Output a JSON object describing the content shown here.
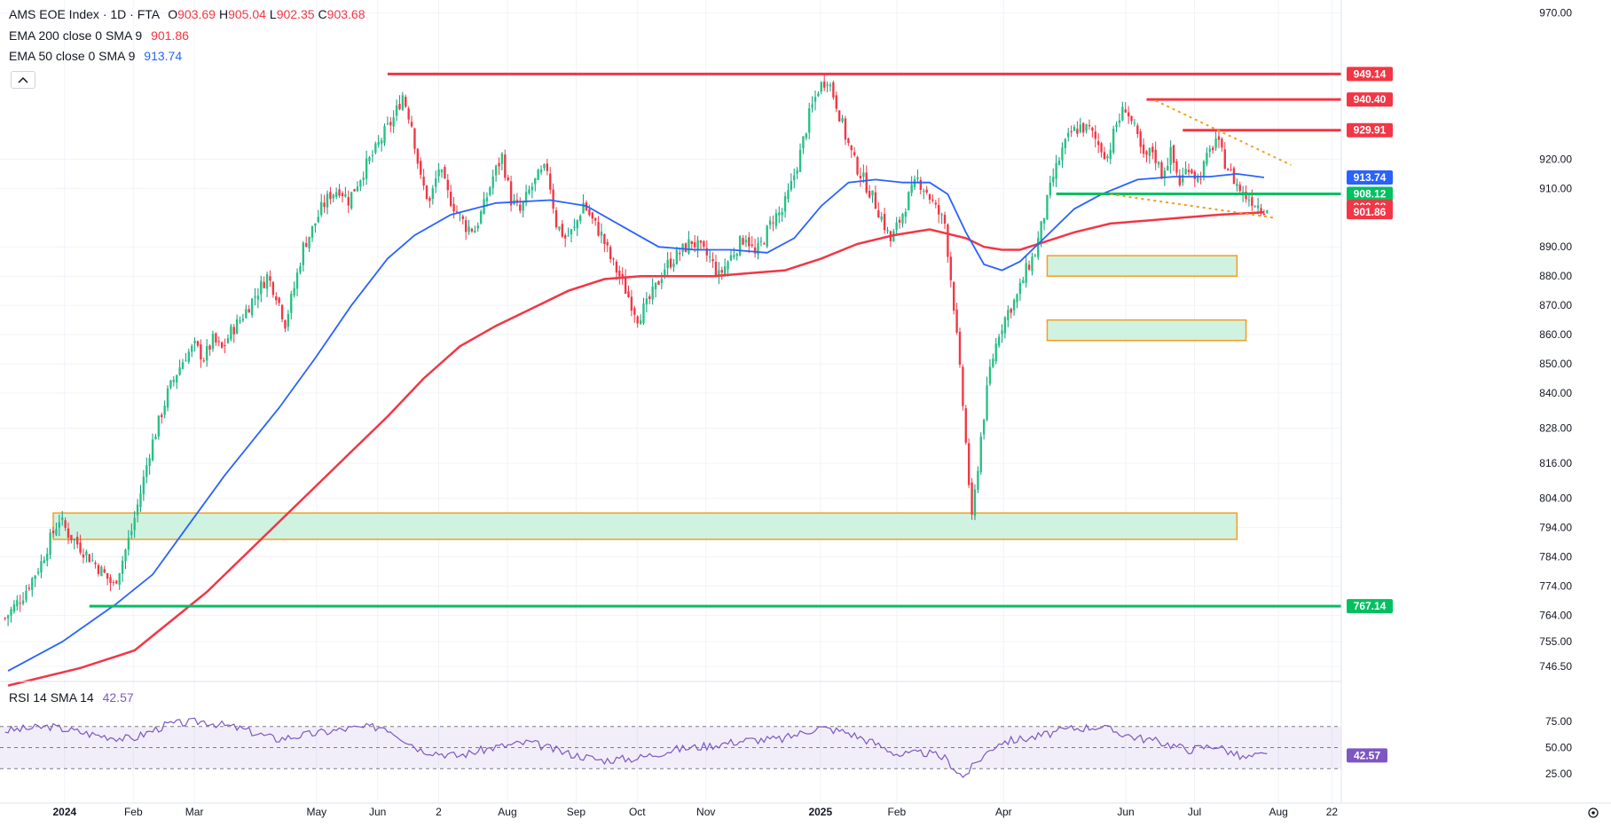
{
  "header": {
    "symbol_title": "AMS EOE Index · 1D · FTA",
    "ohlc": [
      {
        "key": "O",
        "value": "903.69"
      },
      {
        "key": "H",
        "value": "905.04"
      },
      {
        "key": "L",
        "value": "902.35"
      },
      {
        "key": "C",
        "value": "903.68"
      }
    ],
    "ema200_label": "EMA 200 close 0 SMA 9",
    "ema200_value": "901.86",
    "ema50_label": "EMA 50 close 0 SMA 9",
    "ema50_value": "913.74",
    "rsi_label": "RSI 14 SMA 14",
    "rsi_value": "42.57"
  },
  "colors": {
    "up": "#22ab94",
    "down": "#f23645",
    "ema200": "#f23645",
    "ema50": "#2962ff",
    "rsi": "#7e57c2",
    "resistance": "#f23645",
    "support": "#00c060",
    "zone_fill": "#c8f0dc",
    "zone_border": "#f59d1e",
    "trend": "#f59d1e"
  },
  "chart_data": {
    "type": "candlestick",
    "price_axis": {
      "ticks": [
        "970.00",
        "920.00",
        "910.00",
        "890.00",
        "880.00",
        "870.00",
        "860.00",
        "850.00",
        "840.00",
        "828.00",
        "816.00",
        "804.00",
        "794.00",
        "784.00",
        "774.00",
        "764.00",
        "755.00",
        "746.50"
      ],
      "range": [
        742,
        972
      ]
    },
    "time_axis": {
      "labels": [
        "2024",
        "Feb",
        "Mar",
        "May",
        "Jun",
        "2",
        "Aug",
        "Sep",
        "Oct",
        "Nov",
        "2025",
        "Feb",
        "Apr",
        "Jun",
        "Jul",
        "Aug",
        "22"
      ]
    },
    "price_path": [
      [
        0,
        763
      ],
      [
        2,
        771
      ],
      [
        4,
        782
      ],
      [
        5,
        790
      ],
      [
        6,
        797
      ],
      [
        7,
        792
      ],
      [
        9,
        785
      ],
      [
        11,
        778
      ],
      [
        12,
        774
      ],
      [
        13,
        783
      ],
      [
        14,
        793
      ],
      [
        15,
        806
      ],
      [
        16,
        820
      ],
      [
        17,
        830
      ],
      [
        18,
        840
      ],
      [
        19,
        847
      ],
      [
        20,
        853
      ],
      [
        21,
        856
      ],
      [
        22,
        852
      ],
      [
        23,
        858
      ],
      [
        24,
        855
      ],
      [
        25,
        861
      ],
      [
        26,
        865
      ],
      [
        27,
        870
      ],
      [
        29,
        880
      ],
      [
        30,
        874
      ],
      [
        31,
        864
      ],
      [
        32,
        876
      ],
      [
        33,
        890
      ],
      [
        34,
        896
      ],
      [
        35,
        903
      ],
      [
        36,
        908
      ],
      [
        37,
        910
      ],
      [
        38,
        906
      ],
      [
        39,
        912
      ],
      [
        40,
        918
      ],
      [
        41,
        923
      ],
      [
        42,
        929
      ],
      [
        43,
        934
      ],
      [
        44,
        942
      ],
      [
        45,
        932
      ],
      [
        46,
        913
      ],
      [
        47,
        905
      ],
      [
        48,
        917
      ],
      [
        49,
        908
      ],
      [
        50,
        902
      ],
      [
        51,
        897
      ],
      [
        52,
        896
      ],
      [
        53,
        904
      ],
      [
        54,
        914
      ],
      [
        55,
        921
      ],
      [
        56,
        906
      ],
      [
        57,
        902
      ],
      [
        58,
        909
      ],
      [
        59,
        914
      ],
      [
        60,
        917
      ],
      [
        61,
        898
      ],
      [
        62,
        893
      ],
      [
        63,
        896
      ],
      [
        64,
        905
      ],
      [
        65,
        899
      ],
      [
        66,
        894
      ],
      [
        67,
        886
      ],
      [
        68,
        880
      ],
      [
        69,
        873
      ],
      [
        70,
        866
      ],
      [
        71,
        870
      ],
      [
        72,
        876
      ],
      [
        73,
        883
      ],
      [
        74,
        886
      ],
      [
        75,
        889
      ],
      [
        76,
        892
      ],
      [
        77,
        889
      ],
      [
        78,
        886
      ],
      [
        79,
        880
      ],
      [
        80,
        885
      ],
      [
        81,
        890
      ],
      [
        82,
        894
      ],
      [
        83,
        887
      ],
      [
        84,
        893
      ],
      [
        85,
        900
      ],
      [
        86,
        902
      ],
      [
        87,
        911
      ],
      [
        88,
        922
      ],
      [
        89,
        935
      ],
      [
        90,
        944
      ],
      [
        91,
        948
      ],
      [
        92,
        939
      ],
      [
        93,
        928
      ],
      [
        94,
        919
      ],
      [
        95,
        913
      ],
      [
        96,
        907
      ],
      [
        97,
        900
      ],
      [
        98,
        892
      ],
      [
        99,
        899
      ],
      [
        100,
        907
      ],
      [
        101,
        913
      ],
      [
        102,
        909
      ],
      [
        103,
        903
      ],
      [
        104,
        898
      ],
      [
        105,
        870
      ],
      [
        106,
        836
      ],
      [
        107,
        796
      ],
      [
        108,
        825
      ],
      [
        109,
        848
      ],
      [
        110,
        861
      ],
      [
        111,
        868
      ],
      [
        112,
        873
      ],
      [
        113,
        882
      ],
      [
        114,
        888
      ],
      [
        115,
        901
      ],
      [
        116,
        914
      ],
      [
        117,
        923
      ],
      [
        118,
        929
      ],
      [
        119,
        931
      ],
      [
        120,
        930
      ],
      [
        121,
        925
      ],
      [
        122,
        921
      ],
      [
        123,
        932
      ],
      [
        124,
        938
      ],
      [
        125,
        930
      ],
      [
        126,
        920
      ],
      [
        127,
        923
      ],
      [
        128,
        915
      ],
      [
        129,
        922
      ],
      [
        130,
        912
      ],
      [
        131,
        918
      ],
      [
        132,
        913
      ],
      [
        133,
        920
      ],
      [
        134,
        927
      ],
      [
        135,
        919
      ],
      [
        136,
        913
      ],
      [
        137,
        908
      ],
      [
        138,
        906
      ],
      [
        139,
        903.68
      ]
    ],
    "n_bars": 140,
    "ema50": [
      [
        0,
        745
      ],
      [
        6,
        755
      ],
      [
        12,
        768
      ],
      [
        16,
        778
      ],
      [
        20,
        795
      ],
      [
        24,
        812
      ],
      [
        30,
        835
      ],
      [
        34,
        852
      ],
      [
        38,
        870
      ],
      [
        42,
        886
      ],
      [
        45,
        894
      ],
      [
        49,
        901
      ],
      [
        54,
        905
      ],
      [
        60,
        906
      ],
      [
        64,
        904
      ],
      [
        68,
        897
      ],
      [
        72,
        890
      ],
      [
        76,
        889
      ],
      [
        80,
        889
      ],
      [
        84,
        888
      ],
      [
        87,
        893
      ],
      [
        90,
        904
      ],
      [
        93,
        912
      ],
      [
        96,
        913
      ],
      [
        99,
        912
      ],
      [
        102,
        912
      ],
      [
        104,
        908
      ],
      [
        106,
        895
      ],
      [
        108,
        884
      ],
      [
        110,
        882
      ],
      [
        112,
        885
      ],
      [
        115,
        894
      ],
      [
        118,
        903
      ],
      [
        121,
        908
      ],
      [
        125,
        913
      ],
      [
        129,
        914
      ],
      [
        133,
        914
      ],
      [
        136,
        915
      ],
      [
        139,
        913.74
      ]
    ],
    "ema200": [
      [
        0,
        740
      ],
      [
        8,
        746
      ],
      [
        14,
        752
      ],
      [
        18,
        762
      ],
      [
        22,
        772
      ],
      [
        26,
        784
      ],
      [
        30,
        796
      ],
      [
        34,
        808
      ],
      [
        38,
        820
      ],
      [
        42,
        832
      ],
      [
        46,
        845
      ],
      [
        50,
        856
      ],
      [
        54,
        863
      ],
      [
        58,
        869
      ],
      [
        62,
        875
      ],
      [
        66,
        879
      ],
      [
        70,
        880
      ],
      [
        74,
        880
      ],
      [
        78,
        880
      ],
      [
        82,
        881
      ],
      [
        86,
        882
      ],
      [
        90,
        886
      ],
      [
        94,
        891
      ],
      [
        98,
        894
      ],
      [
        102,
        896
      ],
      [
        106,
        893
      ],
      [
        108,
        890
      ],
      [
        110,
        889
      ],
      [
        112,
        889
      ],
      [
        114,
        891
      ],
      [
        118,
        895
      ],
      [
        122,
        898
      ],
      [
        126,
        899
      ],
      [
        130,
        900
      ],
      [
        134,
        901
      ],
      [
        139,
        901.86
      ]
    ],
    "resistance_lines": [
      {
        "price": 949.14,
        "label": "949.14",
        "from": 42
      },
      {
        "price": 940.4,
        "label": "940.40",
        "from": 126
      },
      {
        "price": 929.91,
        "label": "929.91",
        "from": 130
      }
    ],
    "support_lines": [
      {
        "price": 908.12,
        "label": "908.12",
        "from": 116
      },
      {
        "price": 767.14,
        "label": "767.14",
        "from": 9
      }
    ],
    "zones": [
      {
        "from": 5,
        "to": 136,
        "low": 790,
        "high": 799
      },
      {
        "from": 115,
        "to": 136,
        "low": 880,
        "high": 887
      },
      {
        "from": 115,
        "to": 137,
        "low": 858,
        "high": 865
      }
    ],
    "trendlines": [
      {
        "p1": [
          127,
          940
        ],
        "p2": [
          142,
          918
        ]
      },
      {
        "p1": [
          122,
          908
        ],
        "p2": [
          140,
          900
        ]
      }
    ],
    "price_labels": [
      {
        "price": 949.14,
        "text": "949.14",
        "color": "#f23645"
      },
      {
        "price": 940.4,
        "text": "940.40",
        "color": "#f23645"
      },
      {
        "price": 929.91,
        "text": "929.91",
        "color": "#f23645"
      },
      {
        "price": 913.74,
        "text": "913.74",
        "color": "#2962ff"
      },
      {
        "price": 908.12,
        "text": "908.12",
        "color": "#00c060"
      },
      {
        "price": 903.68,
        "text": "903.68",
        "color": "#f23645"
      },
      {
        "price": 901.86,
        "text": "901.86",
        "color": "#f23645"
      },
      {
        "price": 767.14,
        "text": "767.14",
        "color": "#00c060"
      }
    ],
    "rsi": {
      "ticks": [
        "75.00",
        "50.00",
        "25.00"
      ],
      "band": [
        30,
        70
      ],
      "current_label": "42.57",
      "path": [
        [
          0,
          66
        ],
        [
          5,
          70
        ],
        [
          10,
          62
        ],
        [
          14,
          58
        ],
        [
          18,
          72
        ],
        [
          22,
          75
        ],
        [
          26,
          68
        ],
        [
          30,
          58
        ],
        [
          34,
          63
        ],
        [
          38,
          68
        ],
        [
          42,
          70
        ],
        [
          46,
          48
        ],
        [
          50,
          42
        ],
        [
          54,
          50
        ],
        [
          58,
          55
        ],
        [
          62,
          45
        ],
        [
          66,
          38
        ],
        [
          70,
          40
        ],
        [
          74,
          48
        ],
        [
          78,
          52
        ],
        [
          82,
          57
        ],
        [
          86,
          58
        ],
        [
          90,
          69
        ],
        [
          93,
          65
        ],
        [
          96,
          55
        ],
        [
          99,
          43
        ],
        [
          102,
          45
        ],
        [
          104,
          40
        ],
        [
          106,
          22
        ],
        [
          108,
          40
        ],
        [
          110,
          55
        ],
        [
          114,
          60
        ],
        [
          118,
          68
        ],
        [
          121,
          70
        ],
        [
          125,
          60
        ],
        [
          128,
          55
        ],
        [
          131,
          48
        ],
        [
          134,
          52
        ],
        [
          137,
          40
        ],
        [
          139,
          42.57
        ]
      ]
    }
  }
}
